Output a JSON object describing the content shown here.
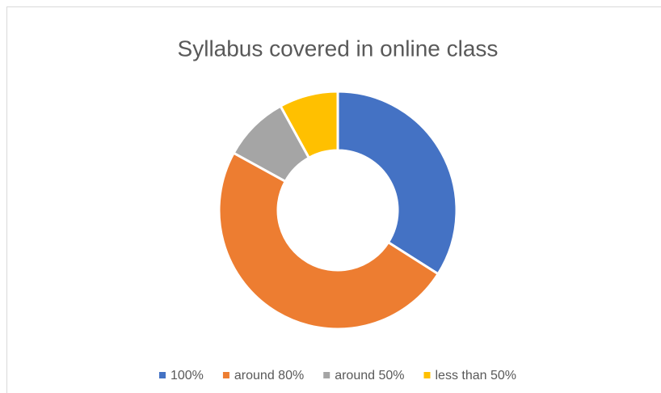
{
  "chart_data": {
    "type": "donut",
    "title": "Syllabus covered in online class",
    "categories": [
      "100%",
      "around 80%",
      "around 50%",
      "less than 50%"
    ],
    "values": [
      34,
      49,
      9,
      8
    ],
    "colors": [
      "#4472c4",
      "#ed7d31",
      "#a5a5a5",
      "#ffc000"
    ],
    "legend": "bottom"
  }
}
